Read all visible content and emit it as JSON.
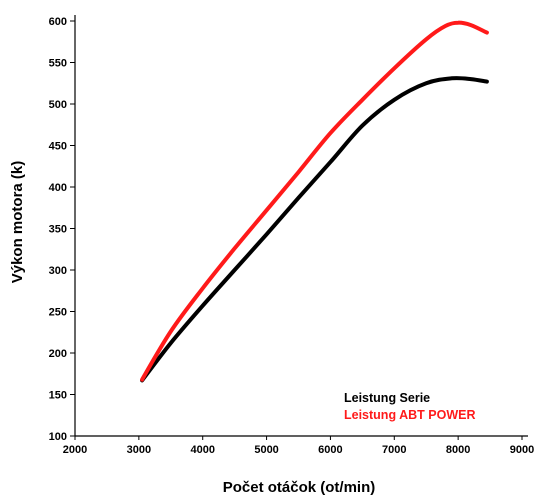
{
  "chart_data": {
    "type": "line",
    "title": "",
    "xlabel": "Počet otáčok (ot/min)",
    "ylabel": "Výkon motora (k)",
    "xlim": [
      2000,
      9000
    ],
    "ylim": [
      100,
      600
    ],
    "xticks": [
      2000,
      3000,
      4000,
      5000,
      6000,
      7000,
      8000,
      9000
    ],
    "yticks": [
      100,
      150,
      200,
      250,
      300,
      350,
      400,
      450,
      500,
      550,
      600
    ],
    "grid": false,
    "legend_placement": "bottom-right",
    "series": [
      {
        "name": "Leistung Serie",
        "color": "#000000",
        "x": [
          3050,
          3500,
          4000,
          4500,
          5000,
          5500,
          6000,
          6500,
          7000,
          7500,
          7900,
          8200,
          8450
        ],
        "y": [
          167,
          212,
          257,
          300,
          343,
          387,
          430,
          474,
          505,
          525,
          531,
          530,
          527
        ]
      },
      {
        "name": "Leistung ABT POWER",
        "color": "#ff1a1a",
        "x": [
          3050,
          3500,
          4000,
          4500,
          5000,
          5500,
          6000,
          6500,
          7000,
          7500,
          7800,
          8000,
          8200,
          8450
        ],
        "y": [
          168,
          226,
          278,
          326,
          372,
          418,
          465,
          505,
          543,
          578,
          594,
          598,
          595,
          586
        ]
      }
    ]
  }
}
